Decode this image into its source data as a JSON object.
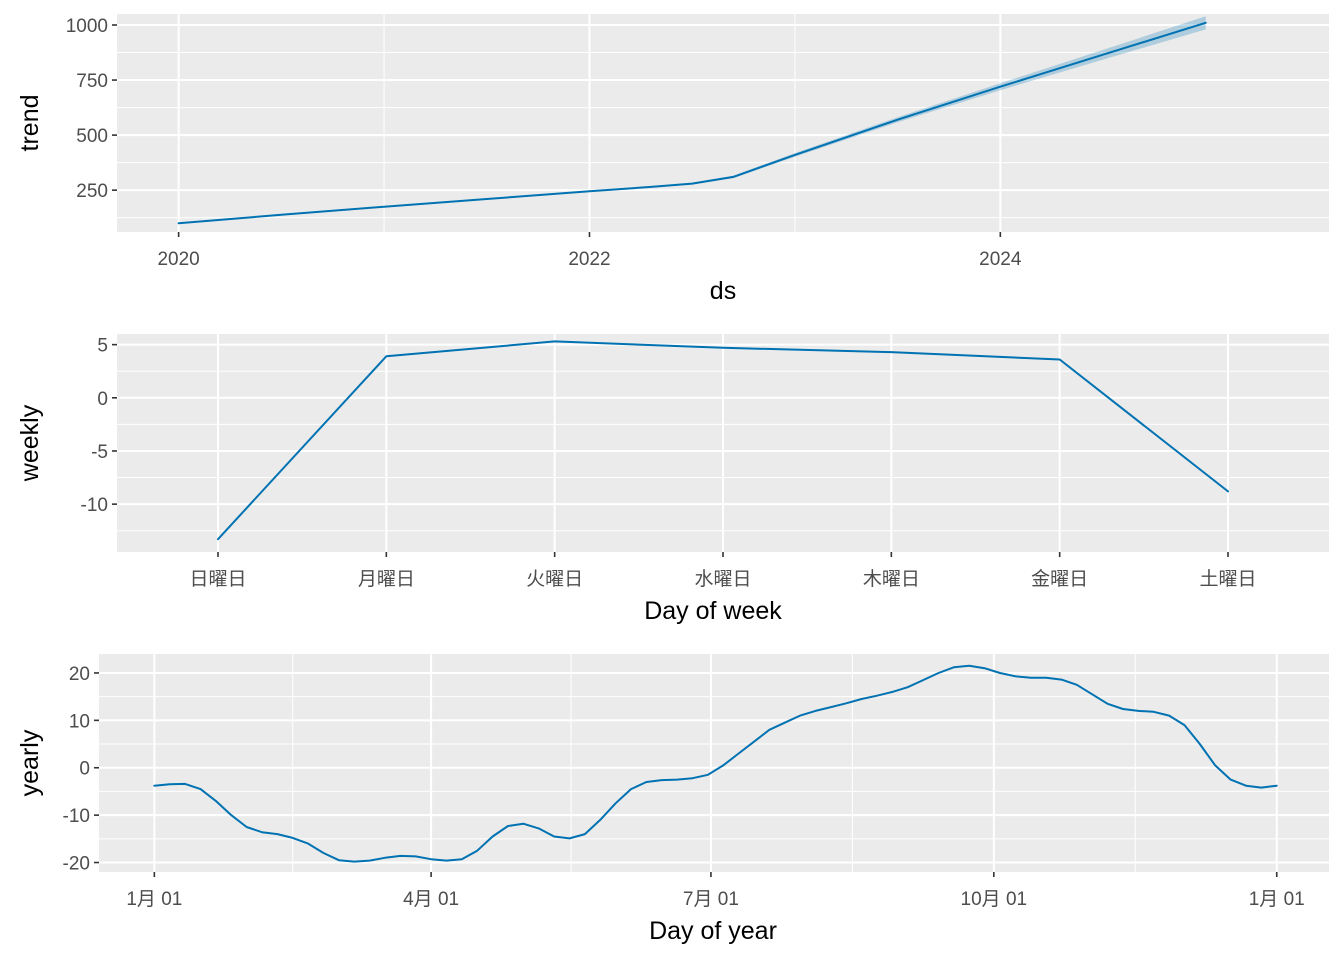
{
  "chart_data": [
    {
      "type": "line",
      "xlabel": "ds",
      "ylabel": "trend",
      "x_ticks": [
        {
          "value": 2020,
          "label": "2020"
        },
        {
          "value": 2022,
          "label": "2022"
        },
        {
          "value": 2024,
          "label": "2024"
        }
      ],
      "y_ticks": [
        250,
        500,
        750,
        1000
      ],
      "xlim": [
        2019.7,
        2025.6
      ],
      "ylim": [
        60,
        1050
      ],
      "color": "#0072B2",
      "uncertainty_band": true,
      "series": [
        {
          "x": [
            2020.0,
            2020.5,
            2021.0,
            2021.5,
            2022.0,
            2022.3,
            2022.5,
            2022.7,
            2023.0,
            2023.5,
            2024.0,
            2024.5,
            2025.0
          ],
          "y": [
            100,
            138,
            175,
            210,
            245,
            265,
            280,
            310,
            410,
            570,
            720,
            865,
            1010
          ]
        }
      ]
    },
    {
      "type": "line",
      "xlabel": "Day of week",
      "ylabel": "weekly",
      "categories": [
        "日曜日",
        "月曜日",
        "火曜日",
        "水曜日",
        "木曜日",
        "金曜日",
        "土曜日"
      ],
      "y_ticks": [
        -10,
        -5,
        0,
        5
      ],
      "ylim": [
        -14.5,
        6.0
      ],
      "color": "#0072B2",
      "series": [
        {
          "values": [
            -13.3,
            3.9,
            5.3,
            4.7,
            4.3,
            3.6,
            -8.8
          ]
        }
      ]
    },
    {
      "type": "line",
      "xlabel": "Day of year",
      "ylabel": "yearly",
      "x_ticks": [
        {
          "value": 0,
          "label": "1月 01"
        },
        {
          "value": 90,
          "label": "4月 01"
        },
        {
          "value": 181,
          "label": "7月 01"
        },
        {
          "value": 273,
          "label": "10月 01"
        },
        {
          "value": 365,
          "label": "1月 01"
        }
      ],
      "y_ticks": [
        -20,
        -10,
        0,
        10,
        20
      ],
      "xlim": [
        -18,
        382
      ],
      "ylim": [
        -22,
        24
      ],
      "color": "#0072B2",
      "series": [
        {
          "x": [
            0,
            5,
            10,
            15,
            20,
            25,
            30,
            35,
            40,
            45,
            50,
            55,
            60,
            65,
            70,
            75,
            80,
            85,
            90,
            95,
            100,
            105,
            110,
            115,
            120,
            125,
            130,
            135,
            140,
            145,
            150,
            155,
            160,
            165,
            170,
            175,
            180,
            185,
            190,
            195,
            200,
            205,
            210,
            215,
            220,
            225,
            230,
            235,
            240,
            245,
            250,
            255,
            260,
            265,
            270,
            275,
            280,
            285,
            290,
            295,
            300,
            305,
            310,
            315,
            320,
            325,
            330,
            335,
            340,
            345,
            350,
            355,
            360,
            365
          ],
          "y": [
            -3.8,
            -3.5,
            -3.4,
            -4.5,
            -7.0,
            -10.0,
            -12.5,
            -13.6,
            -14.0,
            -14.8,
            -16.0,
            -18.0,
            -19.5,
            -19.8,
            -19.6,
            -19.0,
            -18.6,
            -18.7,
            -19.3,
            -19.6,
            -19.3,
            -17.5,
            -14.5,
            -12.3,
            -11.8,
            -12.8,
            -14.5,
            -14.9,
            -14.0,
            -11.0,
            -7.5,
            -4.5,
            -3.0,
            -2.6,
            -2.5,
            -2.2,
            -1.5,
            0.5,
            3.0,
            5.5,
            8.0,
            9.5,
            11.0,
            12.0,
            12.8,
            13.6,
            14.5,
            15.2,
            16.0,
            17.0,
            18.5,
            20.0,
            21.2,
            21.5,
            21.0,
            20.0,
            19.3,
            19.0,
            19.0,
            18.6,
            17.5,
            15.5,
            13.5,
            12.4,
            12.0,
            11.8,
            11.0,
            9.0,
            5.0,
            0.5,
            -2.5,
            -3.8,
            -4.2,
            -3.8
          ]
        }
      ]
    }
  ]
}
